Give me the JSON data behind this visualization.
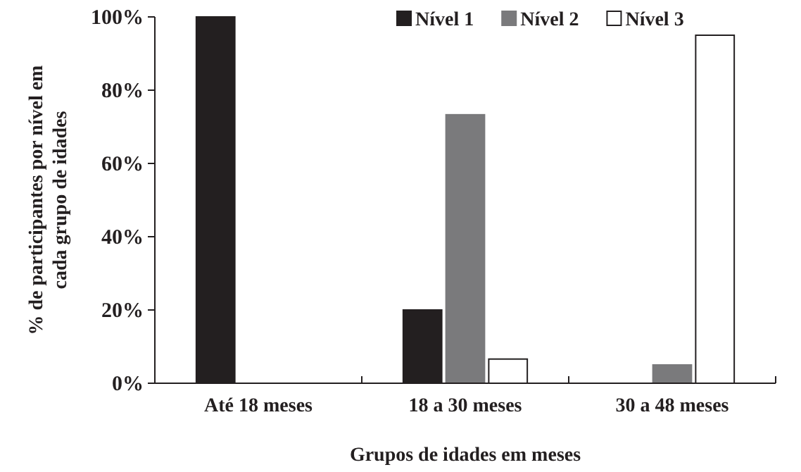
{
  "chart_data": {
    "type": "bar",
    "xlabel": "Grupos de idades em meses",
    "ylabel": "% de participantes por nível em cada grupo de idades",
    "categories": [
      "Até 18 meses",
      "18 a 30 meses",
      "30 a 48 meses"
    ],
    "series": [
      {
        "name": "Nível 1",
        "color": "#231f20",
        "values": [
          100,
          20,
          0
        ]
      },
      {
        "name": "Nível 2",
        "color": "#7a7a7c",
        "values": [
          0,
          73.3,
          5
        ]
      },
      {
        "name": "Nível 3",
        "color": "#ffffff",
        "values": [
          0,
          6.6,
          95
        ]
      }
    ],
    "ylim": [
      0,
      100
    ],
    "yticks": [
      {
        "value": 0,
        "label": "0%"
      },
      {
        "value": 20,
        "label": "20%"
      },
      {
        "value": 40,
        "label": "40%"
      },
      {
        "value": 60,
        "label": "60%"
      },
      {
        "value": 80,
        "label": "80%"
      },
      {
        "value": 100,
        "label": "100%"
      }
    ],
    "grid": false,
    "legend": "top"
  }
}
